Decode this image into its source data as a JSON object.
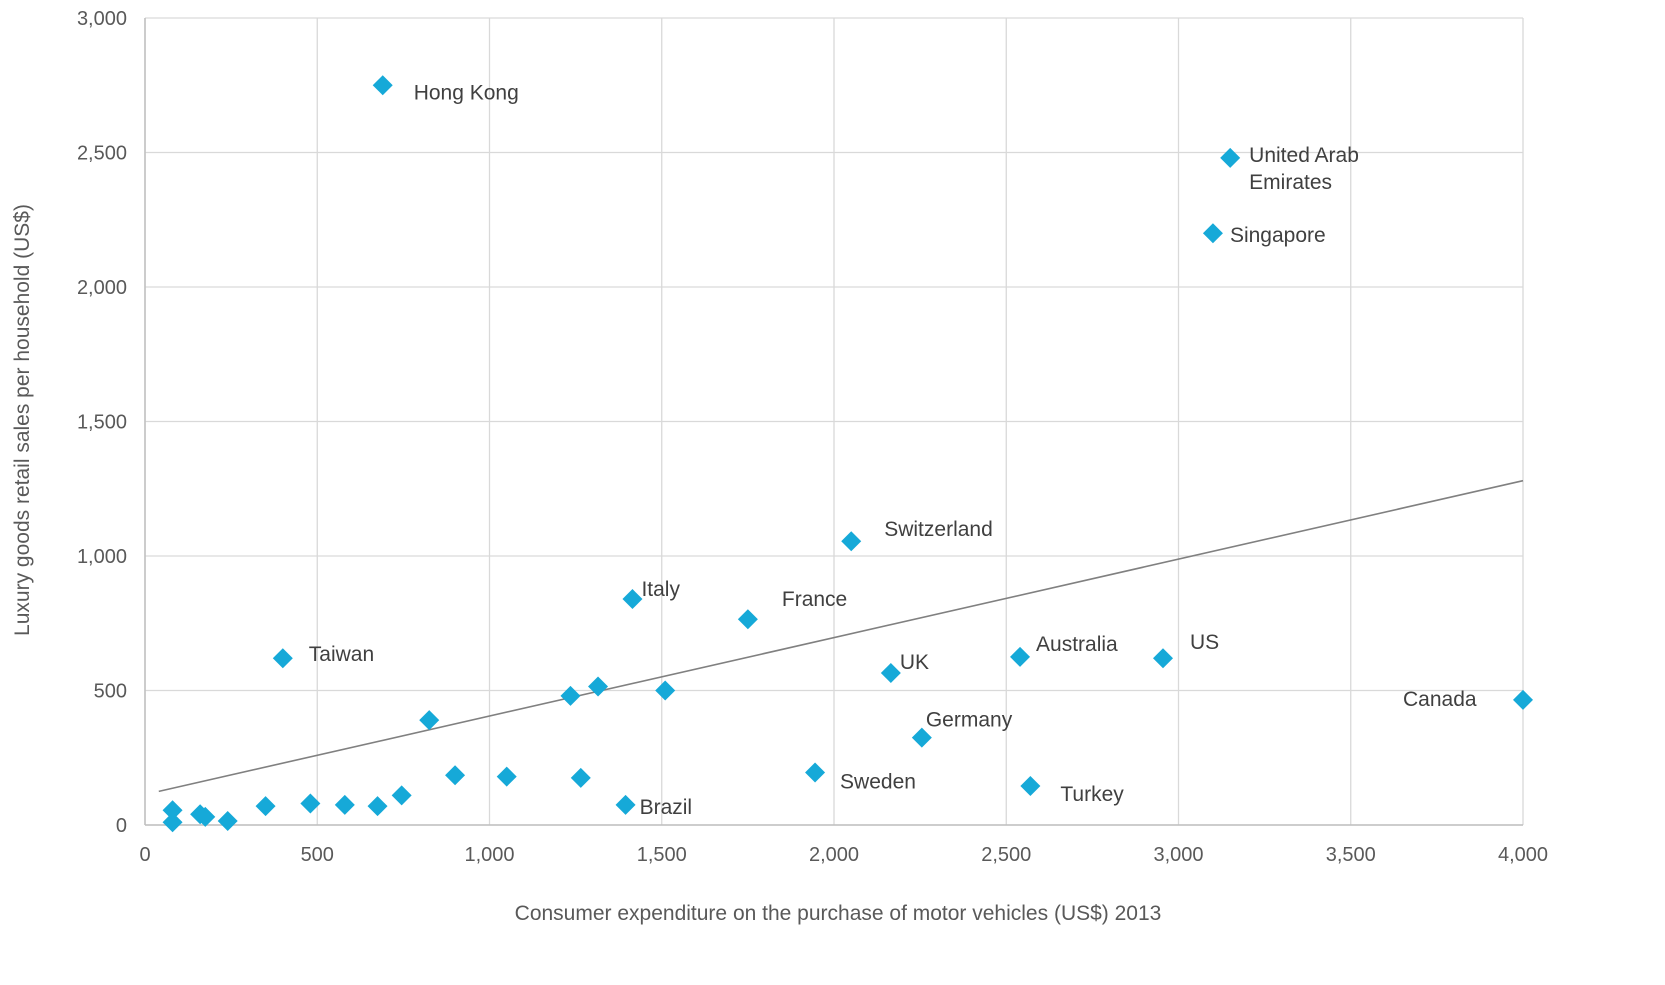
{
  "chart_data": {
    "type": "scatter",
    "title": "",
    "xlabel": "Consumer expenditure on the purchase of motor vehicles (US$) 2013",
    "ylabel": "Luxury goods retail sales per household (US$)",
    "xlim": [
      0,
      4000
    ],
    "ylim": [
      0,
      3000
    ],
    "x_ticks": [
      0,
      500,
      1000,
      1500,
      2000,
      2500,
      3000,
      3500,
      4000
    ],
    "x_tick_labels": [
      "0",
      "500",
      "1,000",
      "1,500",
      "2,000",
      "2,500",
      "3,000",
      "3,500",
      "4,000"
    ],
    "y_ticks": [
      0,
      500,
      1000,
      1500,
      2000,
      2500,
      3000
    ],
    "y_tick_labels": [
      "0",
      "500",
      "1,000",
      "1,500",
      "2,000",
      "2,500",
      "3,000"
    ],
    "grid": true,
    "legend": "none",
    "marker_color": "#16A9D8",
    "trendline_color": "#808080",
    "trendline": {
      "x": [
        40,
        4000
      ],
      "y": [
        125,
        1280
      ]
    },
    "points": [
      {
        "label": "Hong Kong",
        "x": 690,
        "y": 2750
      },
      {
        "label": "United Arab Emirates",
        "x": 3150,
        "y": 2480
      },
      {
        "label": "Singapore",
        "x": 3100,
        "y": 2200
      },
      {
        "label": "Switzerland",
        "x": 2050,
        "y": 1055
      },
      {
        "label": "Italy",
        "x": 1415,
        "y": 840
      },
      {
        "label": "France",
        "x": 1750,
        "y": 765
      },
      {
        "label": "Taiwan",
        "x": 400,
        "y": 620
      },
      {
        "label": "UK",
        "x": 2165,
        "y": 565
      },
      {
        "label": "Australia",
        "x": 2540,
        "y": 625
      },
      {
        "label": "US",
        "x": 2955,
        "y": 620
      },
      {
        "label": "Canada",
        "x": 4000,
        "y": 465
      },
      {
        "label": "Germany",
        "x": 2255,
        "y": 325
      },
      {
        "label": "Sweden",
        "x": 1945,
        "y": 195
      },
      {
        "label": "Turkey",
        "x": 2570,
        "y": 145
      },
      {
        "label": "Brazil",
        "x": 1395,
        "y": 75
      },
      {
        "label": "",
        "x": 80,
        "y": 55
      },
      {
        "label": "",
        "x": 80,
        "y": 10
      },
      {
        "label": "",
        "x": 160,
        "y": 40
      },
      {
        "label": "",
        "x": 175,
        "y": 30
      },
      {
        "label": "",
        "x": 240,
        "y": 15
      },
      {
        "label": "",
        "x": 350,
        "y": 70
      },
      {
        "label": "",
        "x": 480,
        "y": 80
      },
      {
        "label": "",
        "x": 580,
        "y": 75
      },
      {
        "label": "",
        "x": 675,
        "y": 70
      },
      {
        "label": "",
        "x": 745,
        "y": 110
      },
      {
        "label": "",
        "x": 825,
        "y": 390
      },
      {
        "label": "",
        "x": 900,
        "y": 185
      },
      {
        "label": "",
        "x": 1050,
        "y": 180
      },
      {
        "label": "",
        "x": 1235,
        "y": 480
      },
      {
        "label": "",
        "x": 1265,
        "y": 175
      },
      {
        "label": "",
        "x": 1315,
        "y": 515
      },
      {
        "label": "",
        "x": 1510,
        "y": 500
      }
    ]
  }
}
